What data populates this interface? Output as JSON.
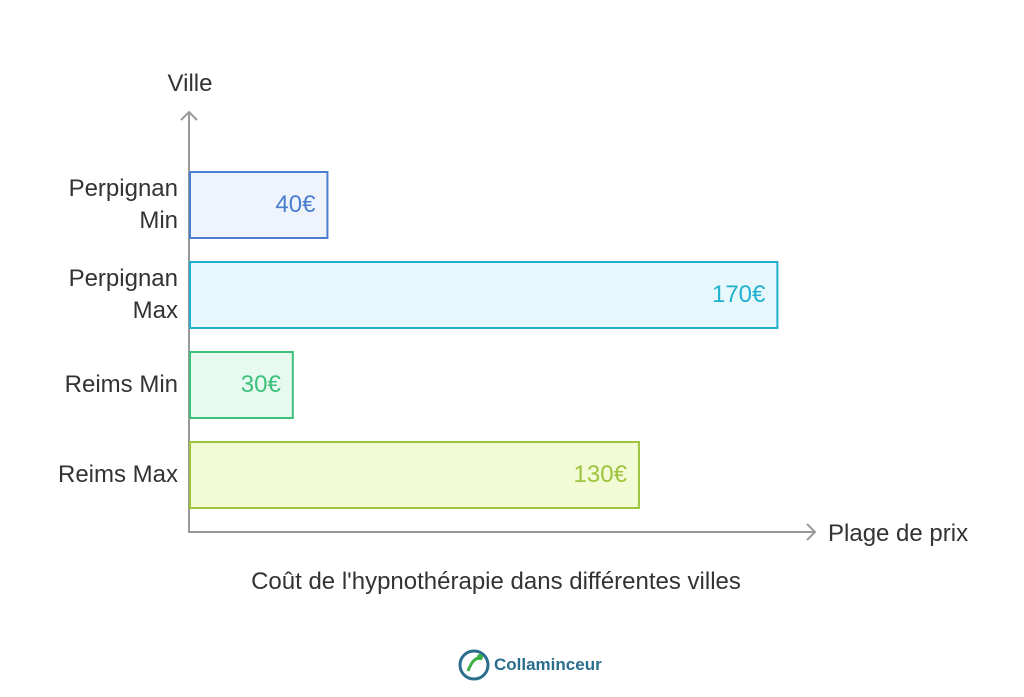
{
  "chart_data": {
    "type": "bar",
    "orientation": "horizontal",
    "title": "Coût de l'hypnothérapie dans différentes villes",
    "y_label": "Ville",
    "x_label": "Plage de prix",
    "categories": [
      "Perpignan Min",
      "Perpignan Max",
      "Reims Min",
      "Reims Max"
    ],
    "values": [
      40,
      170,
      30,
      130
    ],
    "value_labels": [
      "40€",
      "170€",
      "30€",
      "130€"
    ],
    "colors": [
      "#4a7fd0",
      "#22b0d0",
      "#3cc07a",
      "#9cc43c"
    ],
    "fills": [
      "#eef3fc",
      "#e6f8fc",
      "#e6faef",
      "#f3fbd6"
    ],
    "xlim": [
      0,
      180
    ]
  },
  "branding": {
    "logo_text": "Collaminceur"
  }
}
